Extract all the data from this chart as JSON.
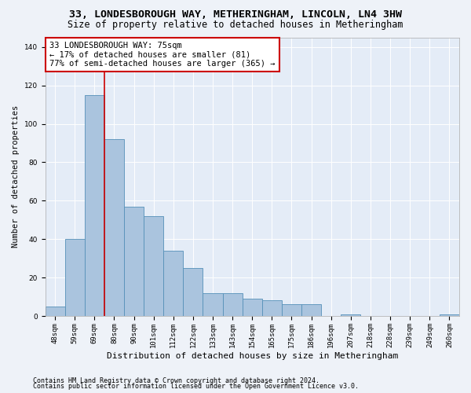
{
  "title": "33, LONDESBOROUGH WAY, METHERINGHAM, LINCOLN, LN4 3HW",
  "subtitle": "Size of property relative to detached houses in Metheringham",
  "xlabel": "Distribution of detached houses by size in Metheringham",
  "ylabel": "Number of detached properties",
  "categories": [
    "48sqm",
    "59sqm",
    "69sqm",
    "80sqm",
    "90sqm",
    "101sqm",
    "112sqm",
    "122sqm",
    "133sqm",
    "143sqm",
    "154sqm",
    "165sqm",
    "175sqm",
    "186sqm",
    "196sqm",
    "207sqm",
    "218sqm",
    "228sqm",
    "239sqm",
    "249sqm",
    "260sqm"
  ],
  "values": [
    5,
    40,
    115,
    92,
    57,
    52,
    34,
    25,
    12,
    12,
    9,
    8,
    6,
    6,
    0,
    1,
    0,
    0,
    0,
    0,
    1
  ],
  "bar_color": "#aac4de",
  "bar_edge_color": "#5590b8",
  "vline_color": "#cc0000",
  "annotation_text": "33 LONDESBOROUGH WAY: 75sqm\n← 17% of detached houses are smaller (81)\n77% of semi-detached houses are larger (365) →",
  "annotation_box_color": "#ffffff",
  "annotation_box_edge_color": "#cc0000",
  "ylim": [
    0,
    145
  ],
  "yticks": [
    0,
    20,
    40,
    60,
    80,
    100,
    120,
    140
  ],
  "footer_line1": "Contains HM Land Registry data © Crown copyright and database right 2024.",
  "footer_line2": "Contains public sector information licensed under the Open Government Licence v3.0.",
  "bg_color": "#eef2f8",
  "plot_bg_color": "#e4ecf7",
  "grid_color": "#ffffff",
  "title_fontsize": 9.5,
  "subtitle_fontsize": 8.5,
  "xlabel_fontsize": 8,
  "ylabel_fontsize": 7.5,
  "tick_fontsize": 6.5,
  "footer_fontsize": 6,
  "annotation_fontsize": 7.5,
  "vline_x": 2.5
}
